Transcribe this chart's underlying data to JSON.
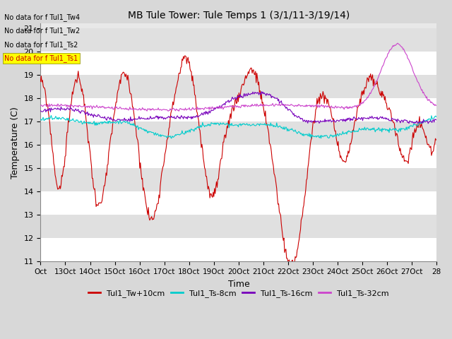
{
  "title": "MB Tule Tower: Tule Temps 1 (3/1/11-3/19/14)",
  "xlabel": "Time",
  "ylabel": "Temperature (C)",
  "ylim": [
    11.0,
    21.2
  ],
  "yticks": [
    11.0,
    12.0,
    13.0,
    14.0,
    15.0,
    16.0,
    17.0,
    18.0,
    19.0,
    20.0,
    21.0
  ],
  "fig_bg_color": "#d8d8d8",
  "plot_bg_color": "#e8e8e8",
  "band_colors": [
    "#ffffff",
    "#e0e0e0"
  ],
  "grid_color": "#c0c0c0",
  "no_data_texts": [
    "No data for f Tul1_Tw4",
    "No data for f Tul1_Tw2",
    "No data for f Tul1_Ts2",
    "No data for f Tul1_Ts1"
  ],
  "no_data_highlight_idx": 3,
  "no_data_highlight_color": "yellow",
  "legend_entries": [
    {
      "label": "Tul1_Tw+10cm",
      "color": "#cc0000"
    },
    {
      "label": "Tul1_Ts-8cm",
      "color": "#00cccc"
    },
    {
      "label": "Tul1_Ts-16cm",
      "color": "#7700bb"
    },
    {
      "label": "Tul1_Ts-32cm",
      "color": "#cc44cc"
    }
  ],
  "xtick_labels": [
    "Oct",
    "13Oct",
    "14Oct",
    "15Oct",
    "16Oct",
    "17Oct",
    "18Oct",
    "19Oct",
    "20Oct",
    "21Oct",
    "22Oct",
    "23Oct",
    "24Oct",
    "25Oct",
    "26Oct",
    "27Oct",
    "28"
  ],
  "line_colors": [
    "#cc0000",
    "#00cccc",
    "#7700bb",
    "#cc44cc"
  ],
  "num_points": 600
}
